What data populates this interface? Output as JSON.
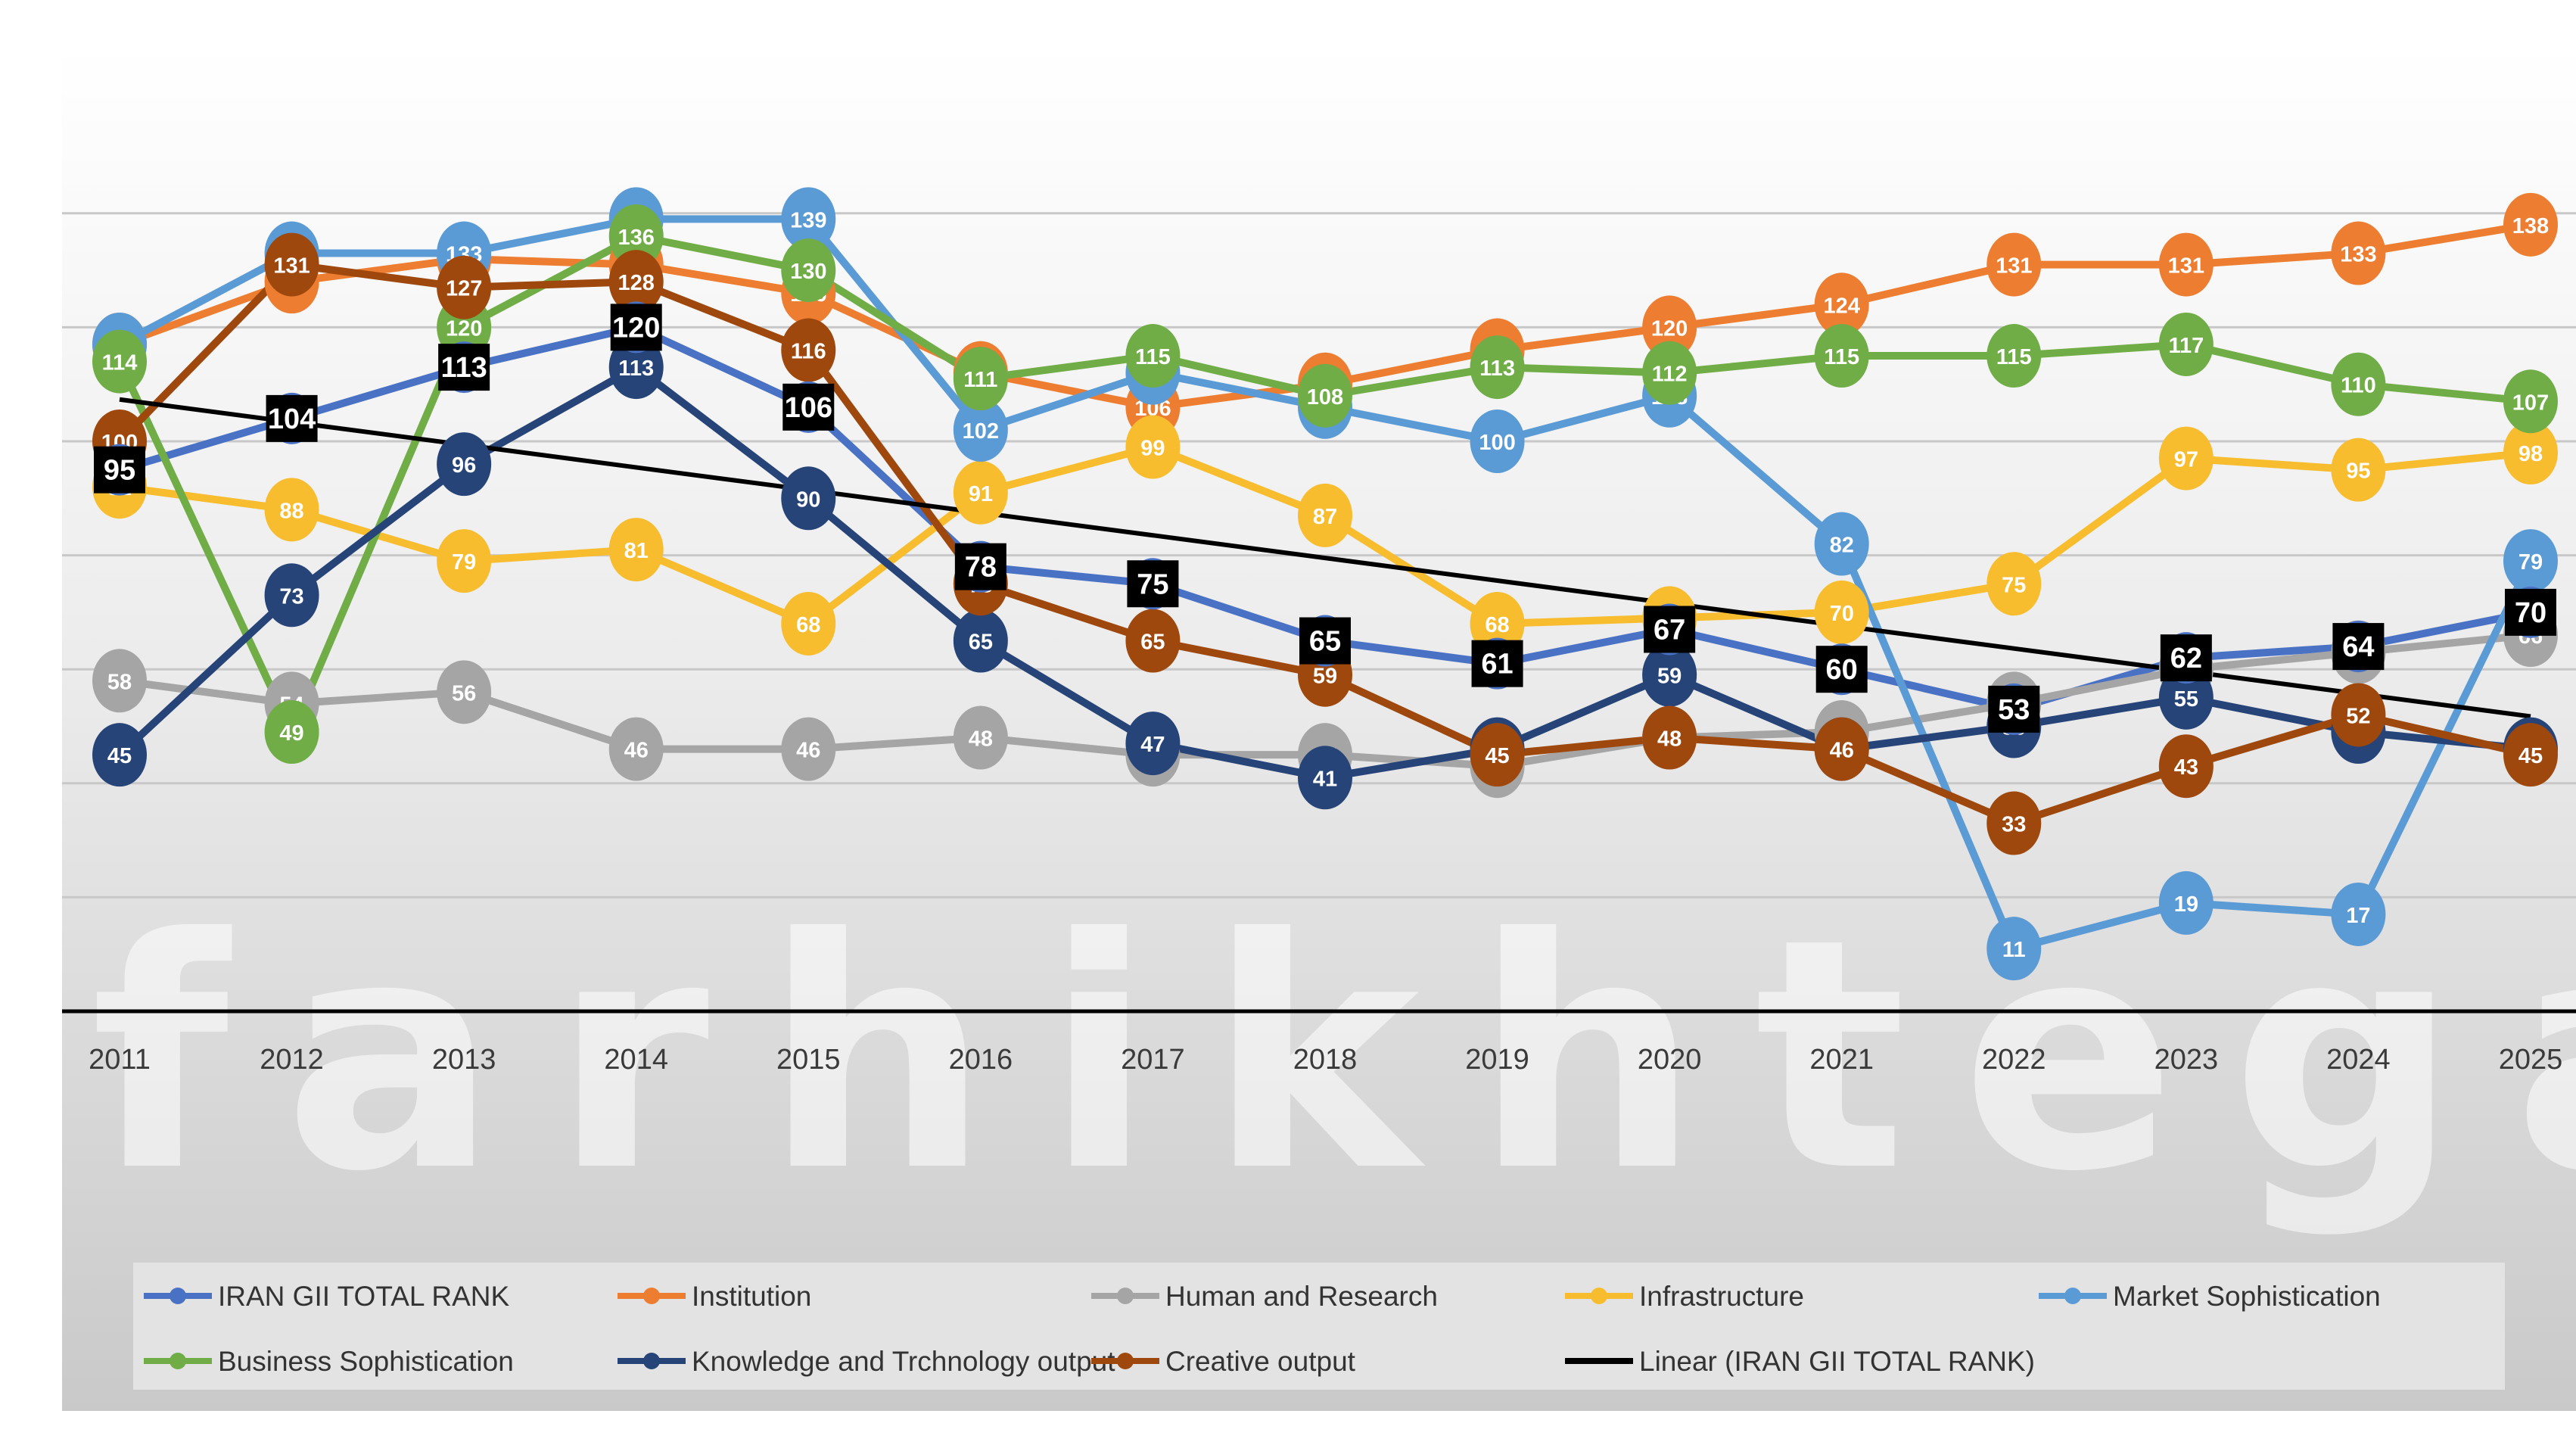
{
  "watermark_text": "farhikhtegan",
  "colors": {
    "background_top": "#ffffff",
    "background_bottom": "#c9c9c9",
    "gridline": "#c8c8c8",
    "axis": "#000000",
    "trendline": "#000000",
    "legend_bg": "#e3e3e3"
  },
  "chart_data": {
    "type": "line",
    "title": "",
    "xlabel": "",
    "ylabel": "",
    "x": [
      "2011",
      "2012",
      "2013",
      "2014",
      "2015",
      "2016",
      "2017",
      "2018",
      "2019",
      "2020",
      "2021",
      "2022",
      "2023",
      "2024",
      "2025"
    ],
    "ylim": [
      0,
      150
    ],
    "y_inverted": true,
    "grid": true,
    "legend_position": "bottom",
    "series": [
      {
        "name": "IRAN GII TOTAL RANK",
        "color": "#4a72c4",
        "label_style": "black-box",
        "values": [
          95,
          104,
          113,
          120,
          106,
          78,
          75,
          65,
          61,
          67,
          60,
          53,
          62,
          64,
          70
        ]
      },
      {
        "name": "Institution",
        "color": "#ed7d31",
        "label_style": "circle",
        "values": [
          117,
          128,
          132,
          131,
          126,
          112,
          106,
          110,
          116,
          120,
          124,
          131,
          131,
          133,
          138
        ]
      },
      {
        "name": "Human and Research",
        "color": "#a5a5a5",
        "label_style": "circle",
        "values": [
          58,
          54,
          56,
          46,
          46,
          48,
          45,
          45,
          43,
          48,
          49,
          54,
          60,
          63,
          66
        ]
      },
      {
        "name": "Infrastructure",
        "color": "#f7bd2e",
        "label_style": "circle",
        "values": [
          92,
          88,
          79,
          81,
          68,
          91,
          99,
          87,
          68,
          69,
          70,
          75,
          97,
          95,
          98
        ]
      },
      {
        "name": "Market Sophistication",
        "color": "#5b9bd5",
        "label_style": "circle",
        "values": [
          117,
          133,
          133,
          139,
          139,
          102,
          112,
          106,
          100,
          108,
          82,
          11,
          19,
          17,
          79
        ]
      },
      {
        "name": "Business Sophistication",
        "color": "#70ad47",
        "label_style": "circle",
        "values": [
          114,
          49,
          120,
          136,
          130,
          111,
          115,
          108,
          113,
          112,
          115,
          115,
          117,
          110,
          107
        ]
      },
      {
        "name": "Knowledge and Trchnology output",
        "color": "#264478",
        "label_style": "circle",
        "values": [
          45,
          73,
          96,
          113,
          90,
          65,
          47,
          41,
          46,
          59,
          46,
          50,
          55,
          49,
          46
        ]
      },
      {
        "name": "Creative output",
        "color": "#9e480e",
        "label_style": "circle",
        "values": [
          100,
          131,
          127,
          128,
          116,
          75,
          65,
          59,
          45,
          48,
          46,
          33,
          43,
          52,
          45
        ]
      }
    ],
    "trendline": {
      "name": "Linear (IRAN GII TOTAL RANK)",
      "of_series": "IRAN GII TOTAL RANK",
      "type": "linear",
      "color": "#000000"
    },
    "legend": [
      "IRAN GII TOTAL RANK",
      "Institution",
      "Human and Research",
      "Infrastructure",
      "Market Sophistication",
      "Business Sophistication",
      "Knowledge and Trchnology output",
      "Creative output",
      "Linear (IRAN GII TOTAL RANK)"
    ]
  }
}
